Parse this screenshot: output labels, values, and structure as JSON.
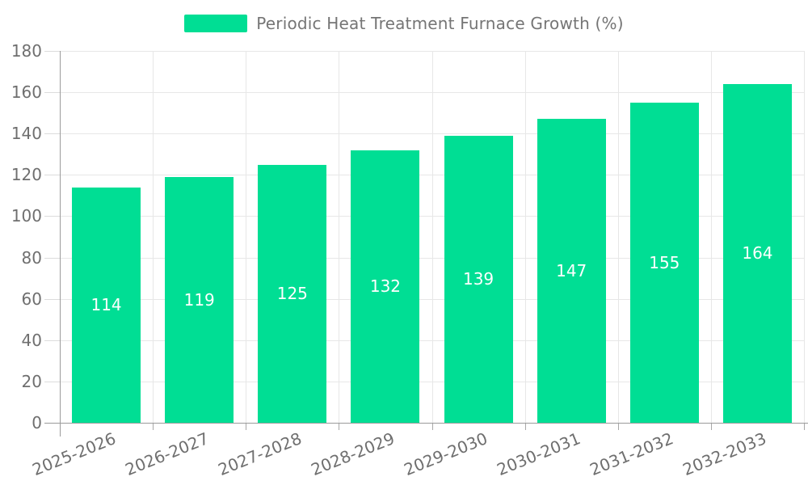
{
  "legend": {
    "label": "Periodic Heat Treatment Furnace Growth (%)"
  },
  "chart_data": {
    "type": "bar",
    "title": "Periodic Heat Treatment Furnace Growth (%)",
    "categories": [
      "2025-2026",
      "2026-2027",
      "2027-2028",
      "2028-2029",
      "2029-2030",
      "2030-2031",
      "2031-2032",
      "2032-2033"
    ],
    "values": [
      114,
      119,
      125,
      132,
      139,
      147,
      155,
      164
    ],
    "xlabel": "",
    "ylabel": "",
    "ylim": [
      0,
      180
    ],
    "ytick_step": 20,
    "ytick_labels": [
      "0",
      "20",
      "40",
      "60",
      "80",
      "100",
      "120",
      "140",
      "160",
      "180"
    ],
    "grid": "both",
    "legend_position": "top",
    "data_labels": "inside-center",
    "colors": {
      "bar": "#00DE94",
      "bar_value_text": "#ffffff",
      "axis_text": "#6f6f6f",
      "legend_text": "#757575",
      "gridline": "#e7e7e7",
      "axis_line": "#9b9b9b"
    }
  }
}
